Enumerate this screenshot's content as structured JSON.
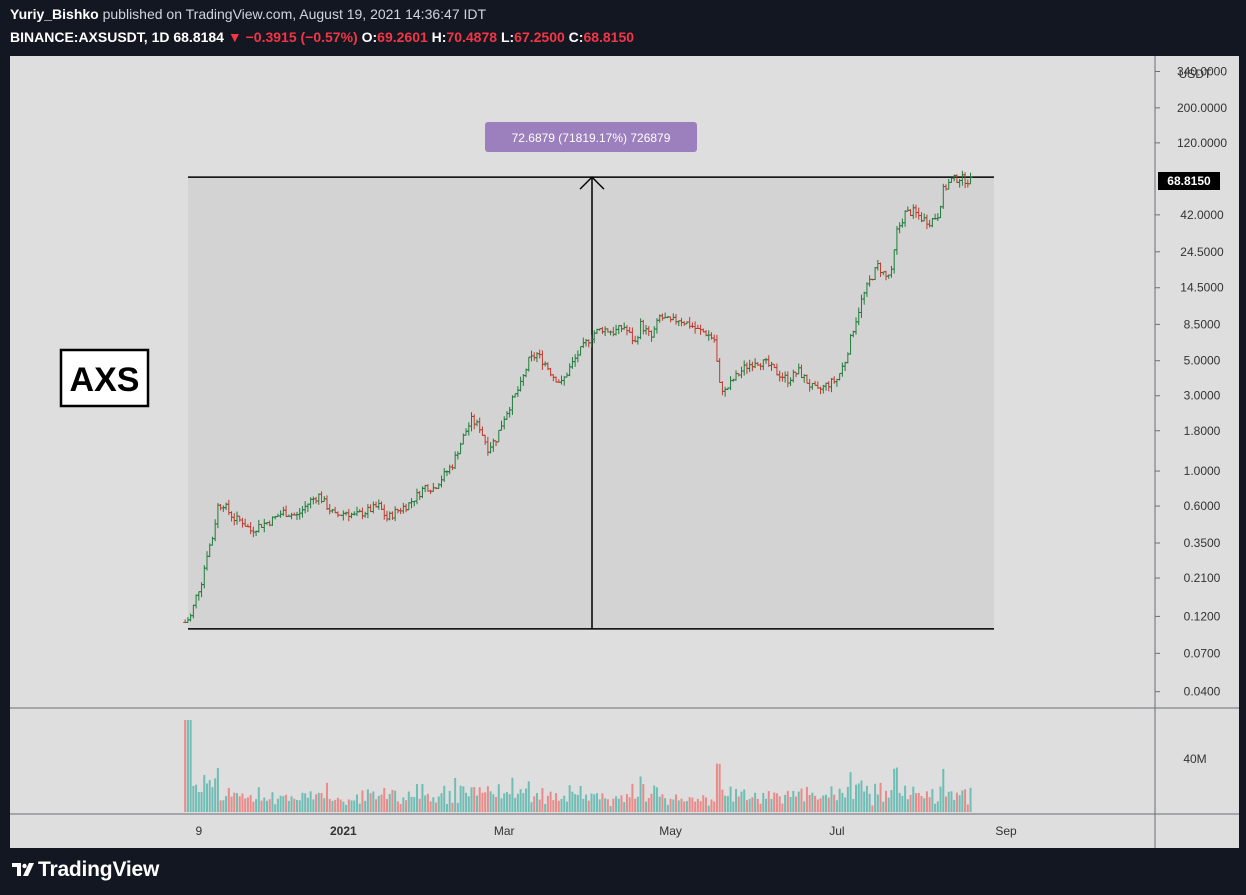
{
  "header": {
    "author": "Yuriy_Bishko",
    "published": "published on TradingView.com, August 19, 2021 14:36:47 IDT",
    "symbol": "BINANCE:AXSUSDT, 1D",
    "last": "68.8184",
    "change": "−0.3915 (−0.57%)",
    "o_label": "O:",
    "o": "69.2601",
    "h_label": "H:",
    "h": "70.4878",
    "l_label": "L:",
    "l": "67.2500",
    "c_label": "C:",
    "c": "68.8150"
  },
  "colors": {
    "background": "#131722",
    "pane": "#dedede",
    "up": "#26a69a",
    "down": "#ef5350",
    "annotation": "#9c7fbd"
  },
  "chart_data": {
    "type": "ohlc",
    "scale": "log",
    "currency": "USDT",
    "price_label": "68.8150",
    "y_ticks": [
      "340.0000",
      "200.0000",
      "120.0000",
      "42.0000",
      "24.5000",
      "14.5000",
      "8.5000",
      "5.0000",
      "3.0000",
      "1.8000",
      "1.0000",
      "0.6000",
      "0.3500",
      "0.2100",
      "0.1200",
      "0.0700",
      "0.0400"
    ],
    "ylim": [
      0.032,
      420
    ],
    "x_ticks": [
      "9",
      "2021",
      "Mar",
      "May",
      "Jul",
      "Sep"
    ],
    "volume_tick": "40M",
    "measure": {
      "from": 0.1,
      "to": 72.79,
      "label": "72.6879 (71819.17%) 726879"
    },
    "annotation_text": "AXS",
    "series": [
      {
        "name": "AXSUSDT close (approx)",
        "points": [
          [
            "2020-11-04",
            0.11
          ],
          [
            "2020-11-06",
            0.12
          ],
          [
            "2020-11-08",
            0.16
          ],
          [
            "2020-11-10",
            0.2
          ],
          [
            "2020-11-12",
            0.3
          ],
          [
            "2020-11-14",
            0.38
          ],
          [
            "2020-11-16",
            0.6
          ],
          [
            "2020-11-18",
            0.62
          ],
          [
            "2020-11-20",
            0.55
          ],
          [
            "2020-11-22",
            0.5
          ],
          [
            "2020-11-25",
            0.48
          ],
          [
            "2020-11-28",
            0.42
          ],
          [
            "2020-12-01",
            0.45
          ],
          [
            "2020-12-05",
            0.48
          ],
          [
            "2020-12-10",
            0.55
          ],
          [
            "2020-12-15",
            0.52
          ],
          [
            "2020-12-20",
            0.65
          ],
          [
            "2020-12-23",
            0.7
          ],
          [
            "2020-12-26",
            0.6
          ],
          [
            "2020-12-29",
            0.52
          ],
          [
            "2021-01-02",
            0.55
          ],
          [
            "2021-01-05",
            0.52
          ],
          [
            "2021-01-10",
            0.56
          ],
          [
            "2021-01-14",
            0.6
          ],
          [
            "2021-01-17",
            0.5
          ],
          [
            "2021-01-20",
            0.55
          ],
          [
            "2021-01-25",
            0.62
          ],
          [
            "2021-01-28",
            0.7
          ],
          [
            "2021-01-31",
            0.8
          ],
          [
            "2021-02-03",
            0.78
          ],
          [
            "2021-02-06",
            0.9
          ],
          [
            "2021-02-10",
            1.1
          ],
          [
            "2021-02-13",
            1.5
          ],
          [
            "2021-02-15",
            1.8
          ],
          [
            "2021-02-17",
            2.1
          ],
          [
            "2021-02-20",
            1.9
          ],
          [
            "2021-02-23",
            1.4
          ],
          [
            "2021-02-26",
            1.6
          ],
          [
            "2021-03-01",
            2.2
          ],
          [
            "2021-03-04",
            2.8
          ],
          [
            "2021-03-07",
            3.5
          ],
          [
            "2021-03-10",
            5.0
          ],
          [
            "2021-03-13",
            5.5
          ],
          [
            "2021-03-16",
            4.8
          ],
          [
            "2021-03-19",
            4.0
          ],
          [
            "2021-03-22",
            3.6
          ],
          [
            "2021-03-25",
            4.5
          ],
          [
            "2021-03-28",
            5.5
          ],
          [
            "2021-03-31",
            6.5
          ],
          [
            "2021-04-03",
            7.5
          ],
          [
            "2021-04-06",
            8.0
          ],
          [
            "2021-04-10",
            7.6
          ],
          [
            "2021-04-14",
            8.2
          ],
          [
            "2021-04-18",
            6.5
          ],
          [
            "2021-04-20",
            8.5
          ],
          [
            "2021-04-24",
            7.0
          ],
          [
            "2021-04-27",
            9.5
          ],
          [
            "2021-05-01",
            8.8
          ],
          [
            "2021-05-04",
            9.2
          ],
          [
            "2021-05-08",
            8.5
          ],
          [
            "2021-05-11",
            7.8
          ],
          [
            "2021-05-14",
            7.5
          ],
          [
            "2021-05-17",
            6.8
          ],
          [
            "2021-05-19",
            3.5
          ],
          [
            "2021-05-21",
            3.2
          ],
          [
            "2021-05-24",
            3.8
          ],
          [
            "2021-05-28",
            4.5
          ],
          [
            "2021-06-01",
            5.0
          ],
          [
            "2021-06-05",
            4.8
          ],
          [
            "2021-06-09",
            4.2
          ],
          [
            "2021-06-13",
            3.8
          ],
          [
            "2021-06-17",
            4.3
          ],
          [
            "2021-06-21",
            3.5
          ],
          [
            "2021-06-24",
            3.2
          ],
          [
            "2021-06-27",
            3.5
          ],
          [
            "2021-07-01",
            3.8
          ],
          [
            "2021-07-04",
            5.0
          ],
          [
            "2021-07-07",
            8.0
          ],
          [
            "2021-07-10",
            12.0
          ],
          [
            "2021-07-13",
            16.0
          ],
          [
            "2021-07-16",
            20.0
          ],
          [
            "2021-07-19",
            17.0
          ],
          [
            "2021-07-21",
            18.0
          ],
          [
            "2021-07-23",
            33.0
          ],
          [
            "2021-07-26",
            43.0
          ],
          [
            "2021-07-29",
            44.0
          ],
          [
            "2021-08-01",
            40.0
          ],
          [
            "2021-08-04",
            38.0
          ],
          [
            "2021-08-07",
            42.0
          ],
          [
            "2021-08-09",
            60.0
          ],
          [
            "2021-08-12",
            70.0
          ],
          [
            "2021-08-15",
            72.0
          ],
          [
            "2021-08-19",
            68.815
          ]
        ]
      }
    ]
  },
  "footer": {
    "brand": "TradingView",
    "logo": "tradingview-logo-icon"
  }
}
